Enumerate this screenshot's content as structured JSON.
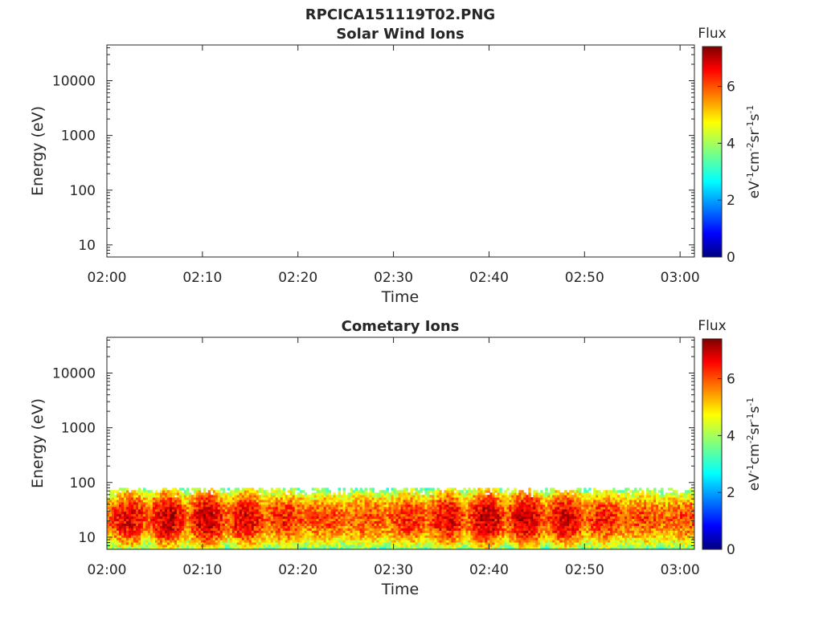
{
  "figure": {
    "filename_title": "RPCICA151119T02.PNG"
  },
  "chart_data": [
    {
      "type": "heatmap",
      "title": "Solar Wind Ions",
      "xlabel": "Time",
      "ylabel": "Energy (eV)",
      "y_scale": "log",
      "ylim": [
        6,
        45000
      ],
      "y_ticks": [
        10,
        100,
        1000,
        10000
      ],
      "y_tick_labels": [
        "10",
        "100",
        "1000",
        "10000"
      ],
      "x_range": [
        "02:00",
        "03:01"
      ],
      "x_tick_labels": [
        "02:00",
        "02:10",
        "02:20",
        "02:30",
        "02:40",
        "02:50",
        "03:00"
      ],
      "colorbar": {
        "label_top": "Flux",
        "unit": "eV⁻¹cm⁻²sr⁻¹s⁻¹",
        "range": [
          0,
          7.4
        ],
        "ticks": [
          "0",
          "2",
          "4",
          "6"
        ],
        "colormap": "jet"
      },
      "data_present": false
    },
    {
      "type": "heatmap",
      "title": "Cometary Ions",
      "xlabel": "Time",
      "ylabel": "Energy (eV)",
      "y_scale": "log",
      "ylim": [
        6,
        45000
      ],
      "y_ticks": [
        10,
        100,
        1000,
        10000
      ],
      "y_tick_labels": [
        "10",
        "100",
        "1000",
        "10000"
      ],
      "x_range": [
        "02:00",
        "03:01"
      ],
      "x_tick_labels": [
        "02:00",
        "02:10",
        "02:20",
        "02:30",
        "02:40",
        "02:50",
        "03:00"
      ],
      "colorbar": {
        "label_top": "Flux",
        "unit": "eV⁻¹cm⁻²sr⁻¹s⁻¹",
        "range": [
          0,
          7.4
        ],
        "ticks": [
          "0",
          "2",
          "4",
          "6"
        ],
        "colormap": "jet"
      },
      "data_present": true,
      "energy_band_eV": [
        6,
        80
      ],
      "peak_flux_energy_eV": 22,
      "peak_flux": 7
    }
  ]
}
